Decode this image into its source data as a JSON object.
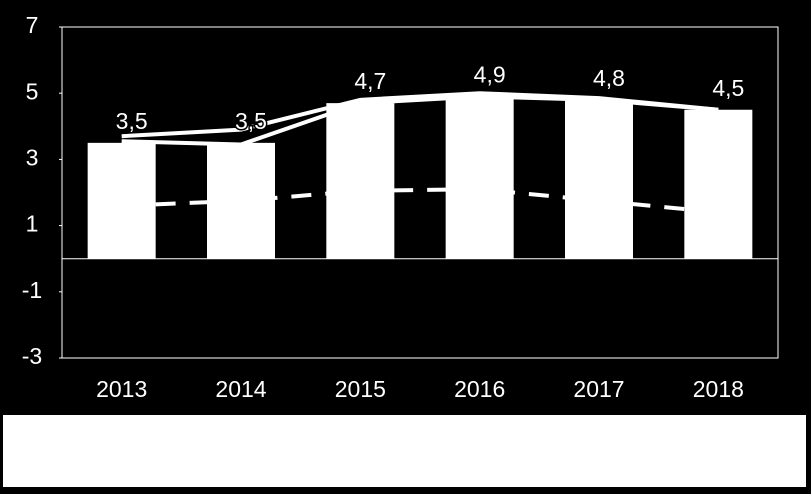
{
  "chart_data": {
    "type": "bar",
    "categories": [
      "2013",
      "2014",
      "2015",
      "2016",
      "2017",
      "2018"
    ],
    "series": [
      {
        "type": "line",
        "style": "dashed",
        "color": "#ffffff",
        "values": [
          1.6,
          1.75,
          2.05,
          2.1,
          1.75,
          1.4
        ]
      },
      {
        "type": "bar",
        "color": "#ffffff",
        "values": [
          3.5,
          3.5,
          4.7,
          4.9,
          4.8,
          4.5
        ],
        "value_labels": [
          "3,5",
          "3,5",
          "4,7",
          "4,9",
          "4,8",
          "4,5"
        ]
      },
      {
        "type": "line",
        "style": "solid",
        "color": "#ffffff",
        "values": [
          3.7,
          3.9,
          4.8,
          5.0,
          4.85,
          4.5
        ]
      },
      {
        "type": "line",
        "style": "solid",
        "color": "#ffffff",
        "values": [
          3.55,
          3.45,
          4.7,
          4.9,
          4.8,
          4.5
        ]
      }
    ],
    "ylim": [
      -3,
      7
    ],
    "yticks": [
      7,
      5,
      3,
      1,
      -1,
      -3
    ],
    "grid": false
  }
}
